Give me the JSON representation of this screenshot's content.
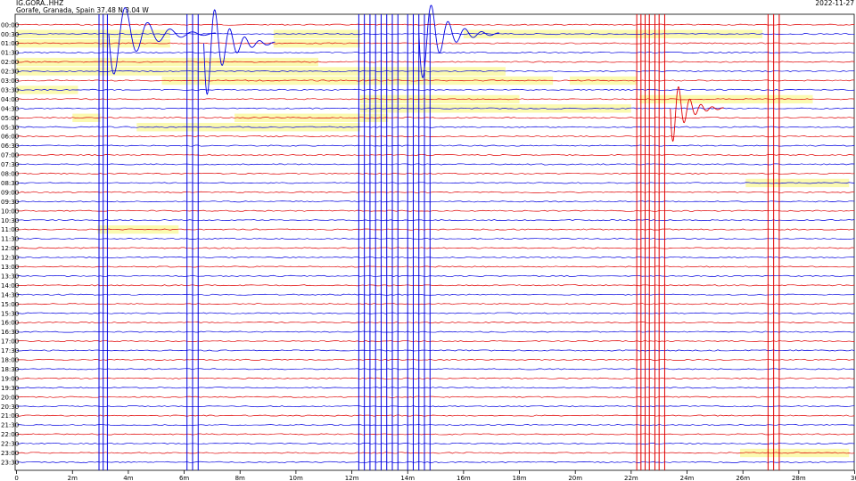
{
  "header": {
    "station": "IG.GORA..HHZ",
    "location": "Gorafe, Granada, Spain  37.48 N 3.04 W",
    "date": "2022-11-27"
  },
  "chart_data": {
    "type": "helicorder",
    "x_ticks": [
      "0",
      "2m",
      "4m",
      "6m",
      "8m",
      "10m",
      "12m",
      "14m",
      "16m",
      "18m",
      "20m",
      "22m",
      "24m",
      "26m",
      "28m",
      "30"
    ],
    "x_range_minutes": [
      0,
      30
    ],
    "rows": [
      "00:00",
      "00:30",
      "01:00",
      "01:30",
      "02:00",
      "02:30",
      "03:00",
      "03:30",
      "04:00",
      "04:30",
      "05:00",
      "05:30",
      "06:00",
      "06:30",
      "07:00",
      "07:30",
      "08:00",
      "08:30",
      "09:00",
      "09:30",
      "10:00",
      "10:30",
      "11:00",
      "11:30",
      "12:00",
      "12:30",
      "13:00",
      "13:30",
      "14:00",
      "14:30",
      "15:00",
      "15:30",
      "16:00",
      "16:30",
      "17:00",
      "17:30",
      "18:00",
      "18:30",
      "19:00",
      "19:30",
      "20:00",
      "20:30",
      "21:00",
      "21:30",
      "22:00",
      "22:30",
      "23:00",
      "23:30"
    ],
    "trace_colors": [
      "#e00000",
      "#0000e0"
    ],
    "gap_color": "#fbfab0",
    "gaps": [
      {
        "row": 1,
        "start": 0,
        "end": 5.5
      },
      {
        "row": 1,
        "start": 9.2,
        "end": 12.3
      },
      {
        "row": 1,
        "start": 16,
        "end": 26.7
      },
      {
        "row": 2,
        "start": 0,
        "end": 5.5
      },
      {
        "row": 2,
        "start": 9.2,
        "end": 12.3
      },
      {
        "row": 4,
        "start": 0,
        "end": 10.8
      },
      {
        "row": 5,
        "start": 0,
        "end": 17.5
      },
      {
        "row": 5,
        "start": 12.3,
        "end": 17.5
      },
      {
        "row": 6,
        "start": 5.2,
        "end": 19.2
      },
      {
        "row": 6,
        "start": 19.8,
        "end": 22.2
      },
      {
        "row": 7,
        "start": 0,
        "end": 2.2
      },
      {
        "row": 8,
        "start": 12.3,
        "end": 18.0
      },
      {
        "row": 8,
        "start": 22.3,
        "end": 28.5
      },
      {
        "row": 9,
        "start": 12.3,
        "end": 22.0
      },
      {
        "row": 10,
        "start": 2.0,
        "end": 3.0
      },
      {
        "row": 10,
        "start": 7.8,
        "end": 13.3
      },
      {
        "row": 11,
        "start": 4.3,
        "end": 12.3
      },
      {
        "row": 17,
        "start": 26.1,
        "end": 29.8
      },
      {
        "row": 22,
        "start": 2.9,
        "end": 5.8
      },
      {
        "row": 46,
        "start": 25.9,
        "end": 29.8
      }
    ],
    "red_lines_minutes": [
      22.2,
      22.35,
      22.5,
      22.65,
      22.85,
      23.0,
      23.2,
      26.9,
      27.1,
      27.3
    ],
    "blue_lines_minutes": [
      2.95,
      3.1,
      3.25,
      6.1,
      6.3,
      6.5,
      12.25,
      12.45,
      12.65,
      12.85,
      13.05,
      13.25,
      13.45,
      13.65,
      14.0,
      14.2,
      14.4,
      14.6,
      14.8
    ]
  }
}
